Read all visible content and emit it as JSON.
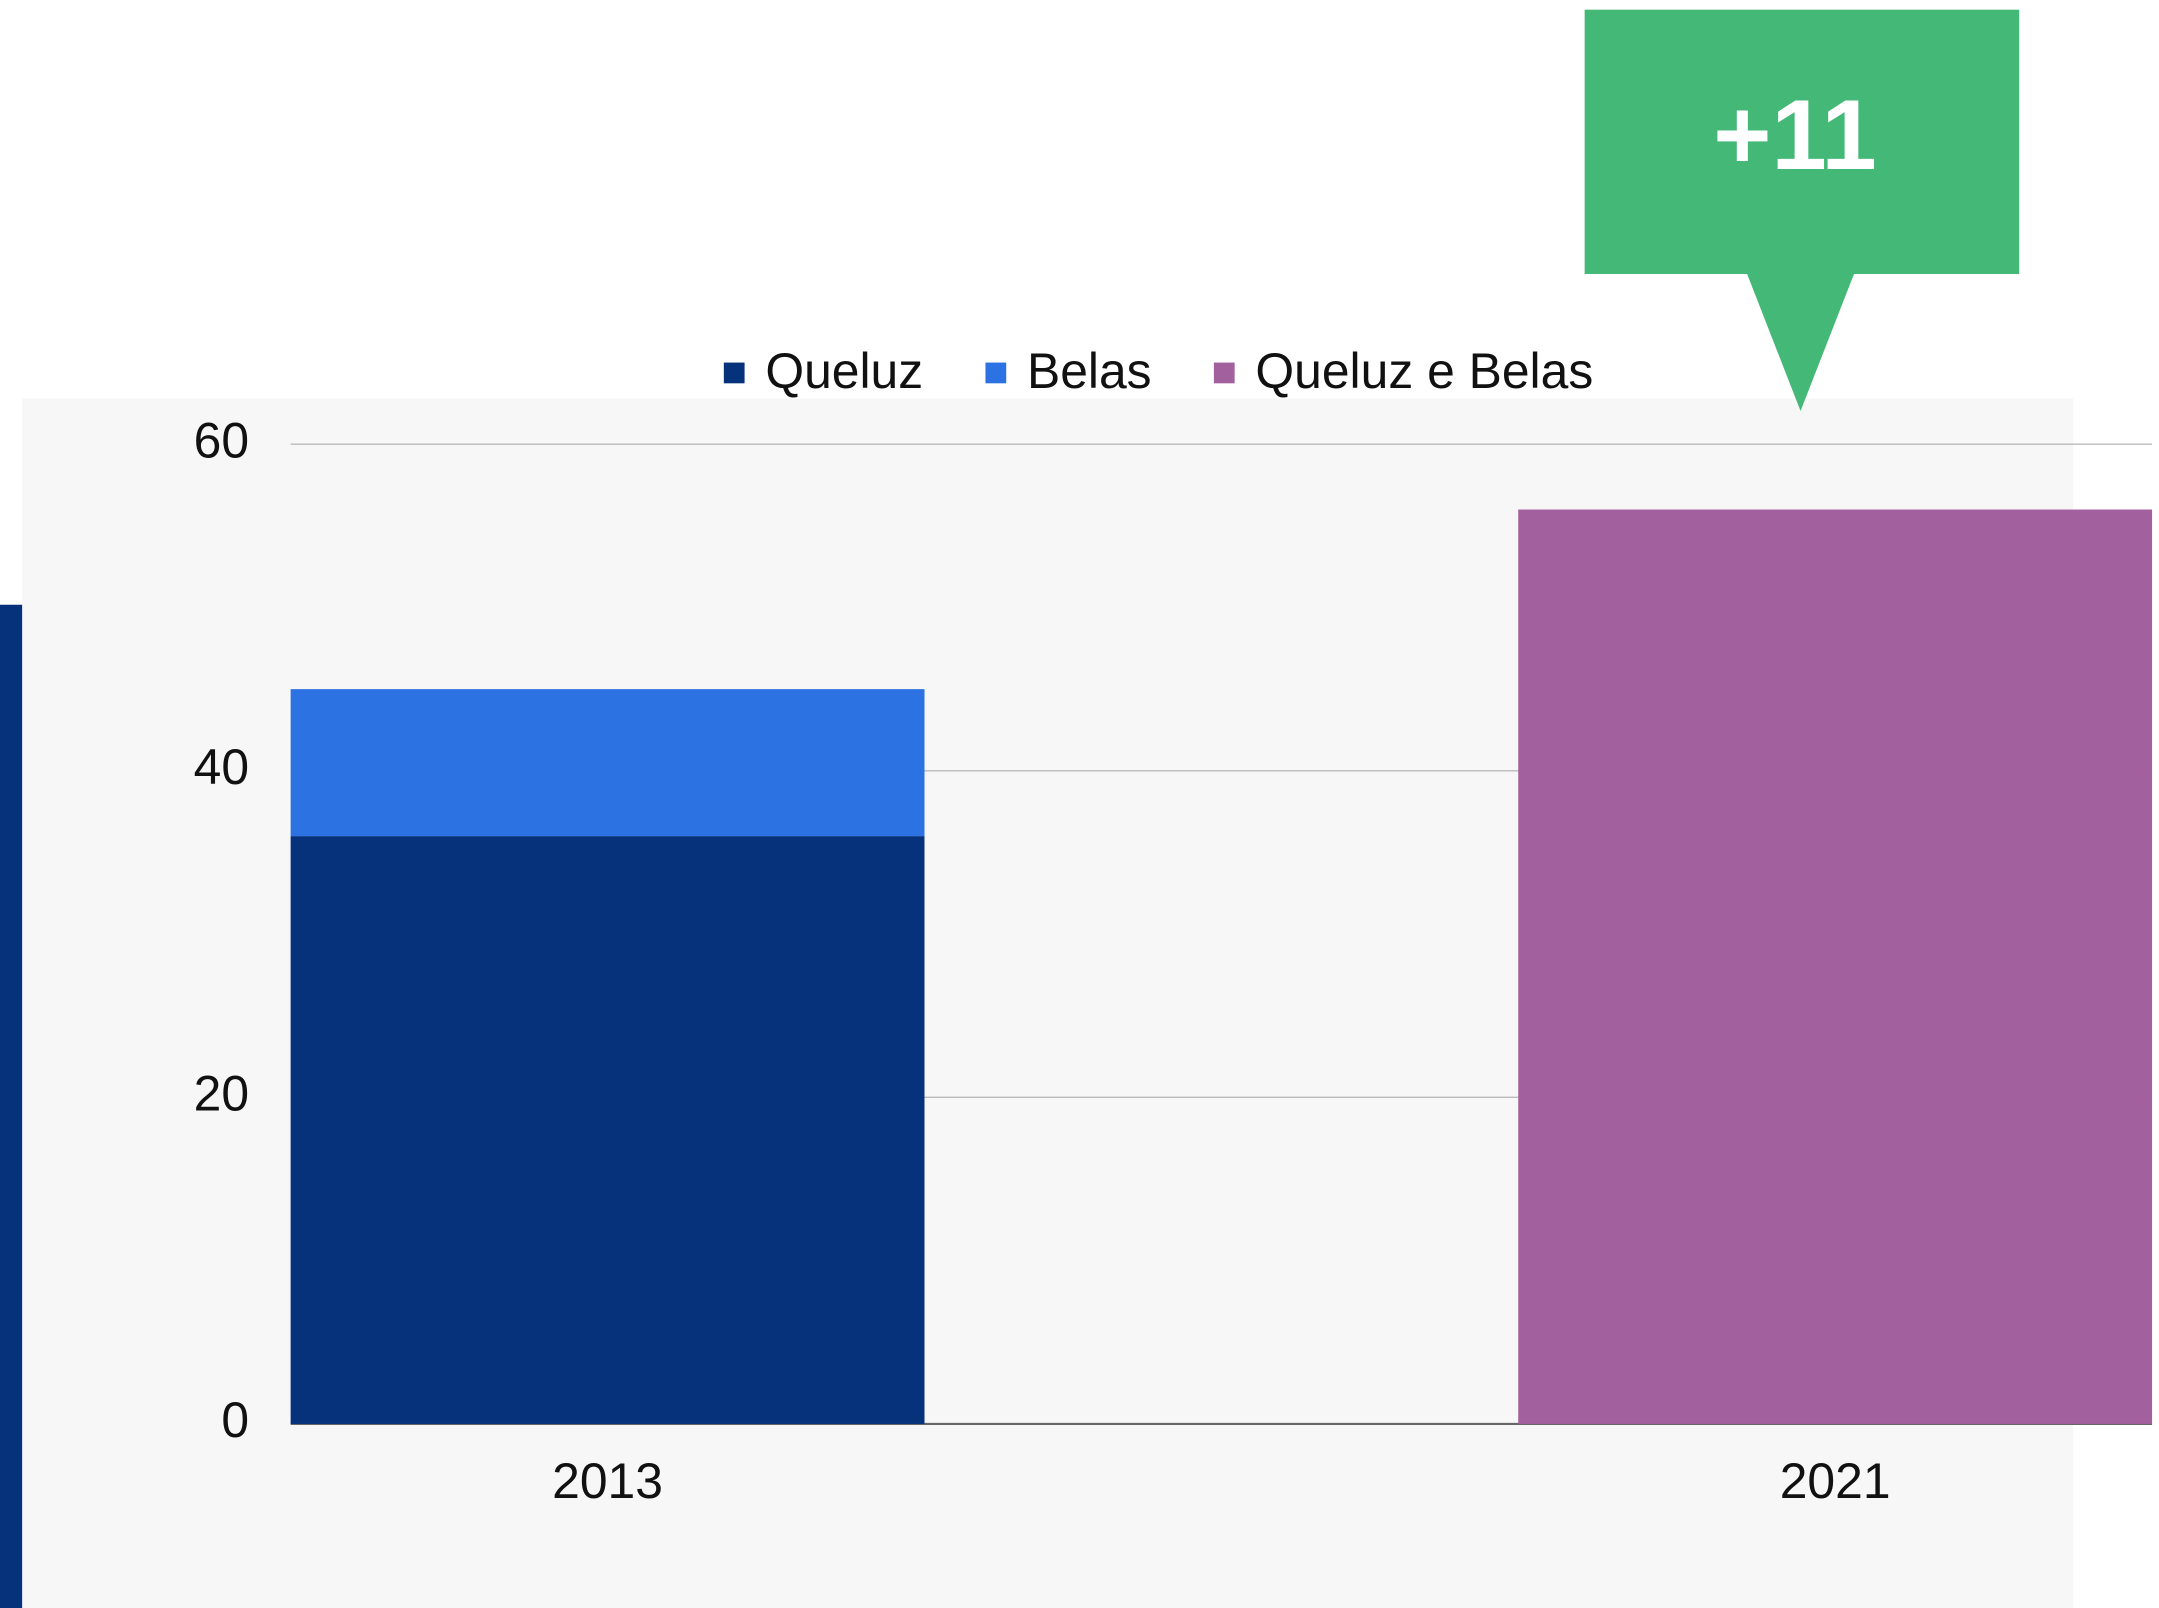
{
  "chart_data": {
    "type": "stacked_bar",
    "categories": [
      "2013",
      "2021"
    ],
    "series": [
      {
        "name": "Queluz",
        "color": "#06327c",
        "values": [
          36,
          null
        ]
      },
      {
        "name": "Belas",
        "color": "#2c72e3",
        "values": [
          9,
          null
        ]
      },
      {
        "name": "Queluz e Belas",
        "color": "#a2619e",
        "values": [
          null,
          56
        ]
      }
    ],
    "ylim": [
      0,
      60
    ],
    "yticks": [
      0,
      20,
      40,
      60
    ],
    "grid": true,
    "annotation": "+11",
    "annotation_color": "#44b877"
  }
}
